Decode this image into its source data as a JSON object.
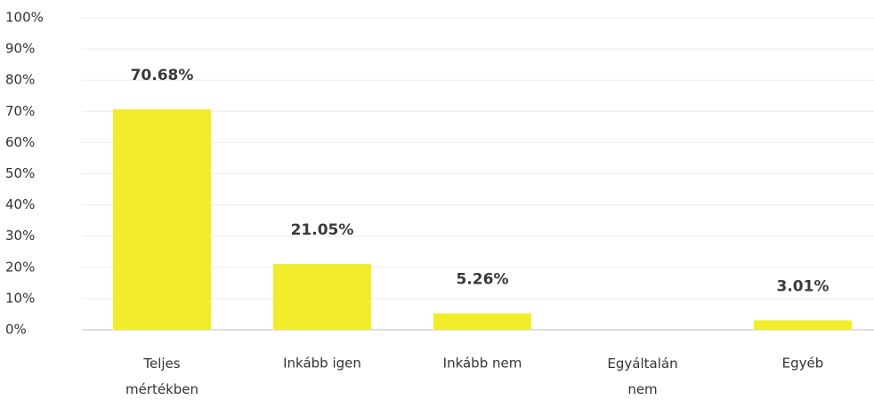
{
  "chart_data": {
    "type": "bar",
    "categories": [
      "Teljes mértékben",
      "Inkább igen",
      "Inkább nem",
      "Egyáltalán nem",
      "Egyéb"
    ],
    "values": [
      70.68,
      21.05,
      5.26,
      0,
      3.01
    ],
    "value_labels": [
      "70.68%",
      "21.05%",
      "5.26%",
      null,
      "3.01%"
    ],
    "color": "#f2ed2b",
    "ylim": [
      0,
      100
    ],
    "yticks": [
      {
        "value": 0,
        "label": "0%"
      },
      {
        "value": 10,
        "label": "10%"
      },
      {
        "value": 20,
        "label": "20%"
      },
      {
        "value": 30,
        "label": "30%"
      },
      {
        "value": 40,
        "label": "40%"
      },
      {
        "value": 50,
        "label": "50%"
      },
      {
        "value": 60,
        "label": "60%"
      },
      {
        "value": 70,
        "label": "70%"
      },
      {
        "value": 80,
        "label": "80%"
      },
      {
        "value": 90,
        "label": "90%"
      },
      {
        "value": 100,
        "label": "100%"
      }
    ],
    "grid": true
  }
}
